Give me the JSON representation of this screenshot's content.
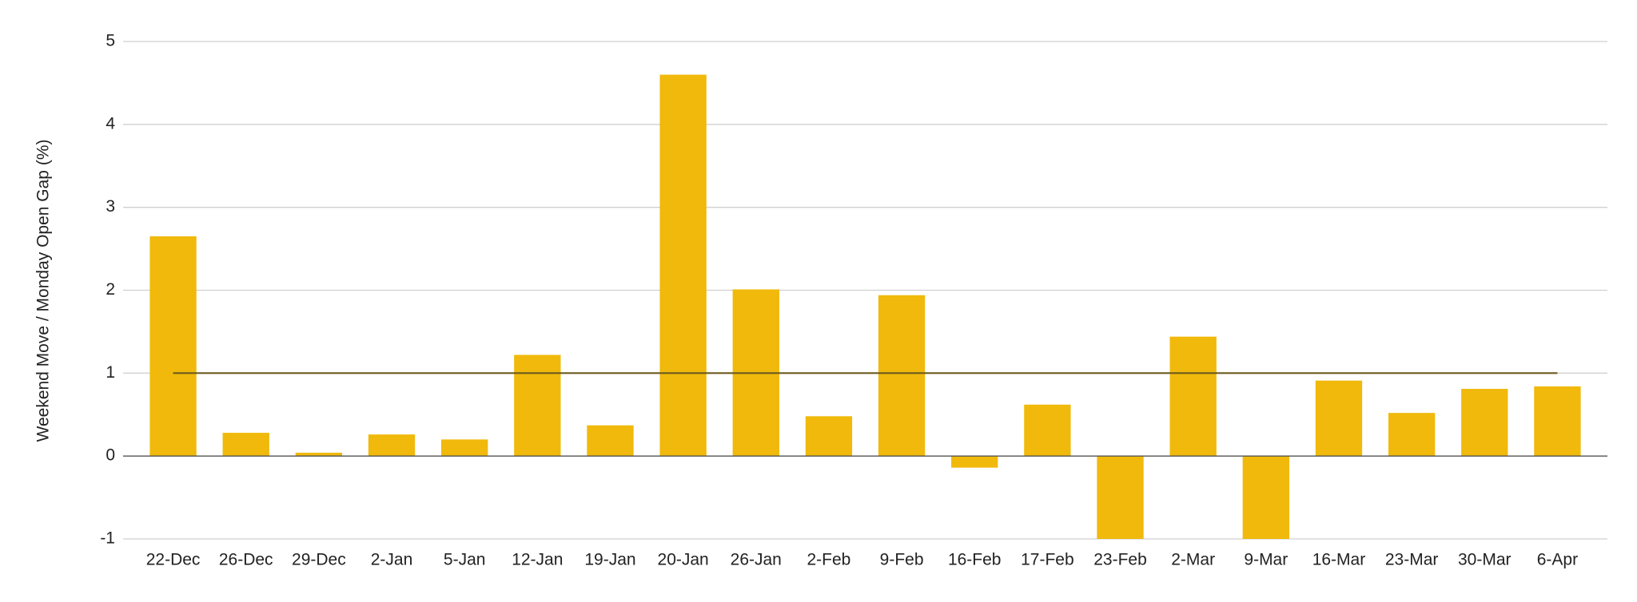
{
  "chart_data": {
    "type": "bar",
    "y_label": "Weekend Move / Monday Open Gap (%)",
    "categories": [
      "22-Dec",
      "26-Dec",
      "29-Dec",
      "2-Jan",
      "5-Jan",
      "12-Jan",
      "19-Jan",
      "20-Jan",
      "26-Jan",
      "2-Feb",
      "9-Feb",
      "16-Feb",
      "17-Feb",
      "23-Feb",
      "2-Mar",
      "9-Mar",
      "16-Mar",
      "23-Mar",
      "30-Mar",
      "6-Apr"
    ],
    "series": [
      {
        "type": "bar",
        "color": "#f0b90b",
        "values": [
          2.65,
          0.28,
          0.04,
          0.26,
          0.2,
          1.22,
          0.37,
          4.6,
          2.01,
          0.48,
          1.94,
          -0.14,
          0.62,
          -1,
          1.44,
          -1,
          0.91,
          0.52,
          0.81,
          0.84
        ]
      },
      {
        "type": "line",
        "color": "#6b5a1e",
        "values": [
          1,
          1,
          1,
          1,
          1,
          1,
          1,
          1,
          1,
          1,
          1,
          1,
          1,
          1,
          1,
          1,
          1,
          1,
          1,
          1
        ]
      }
    ],
    "ylim": [
      -1,
      5
    ],
    "yticks": [
      -1,
      0,
      1,
      2,
      3,
      4,
      5
    ],
    "grid": true
  }
}
